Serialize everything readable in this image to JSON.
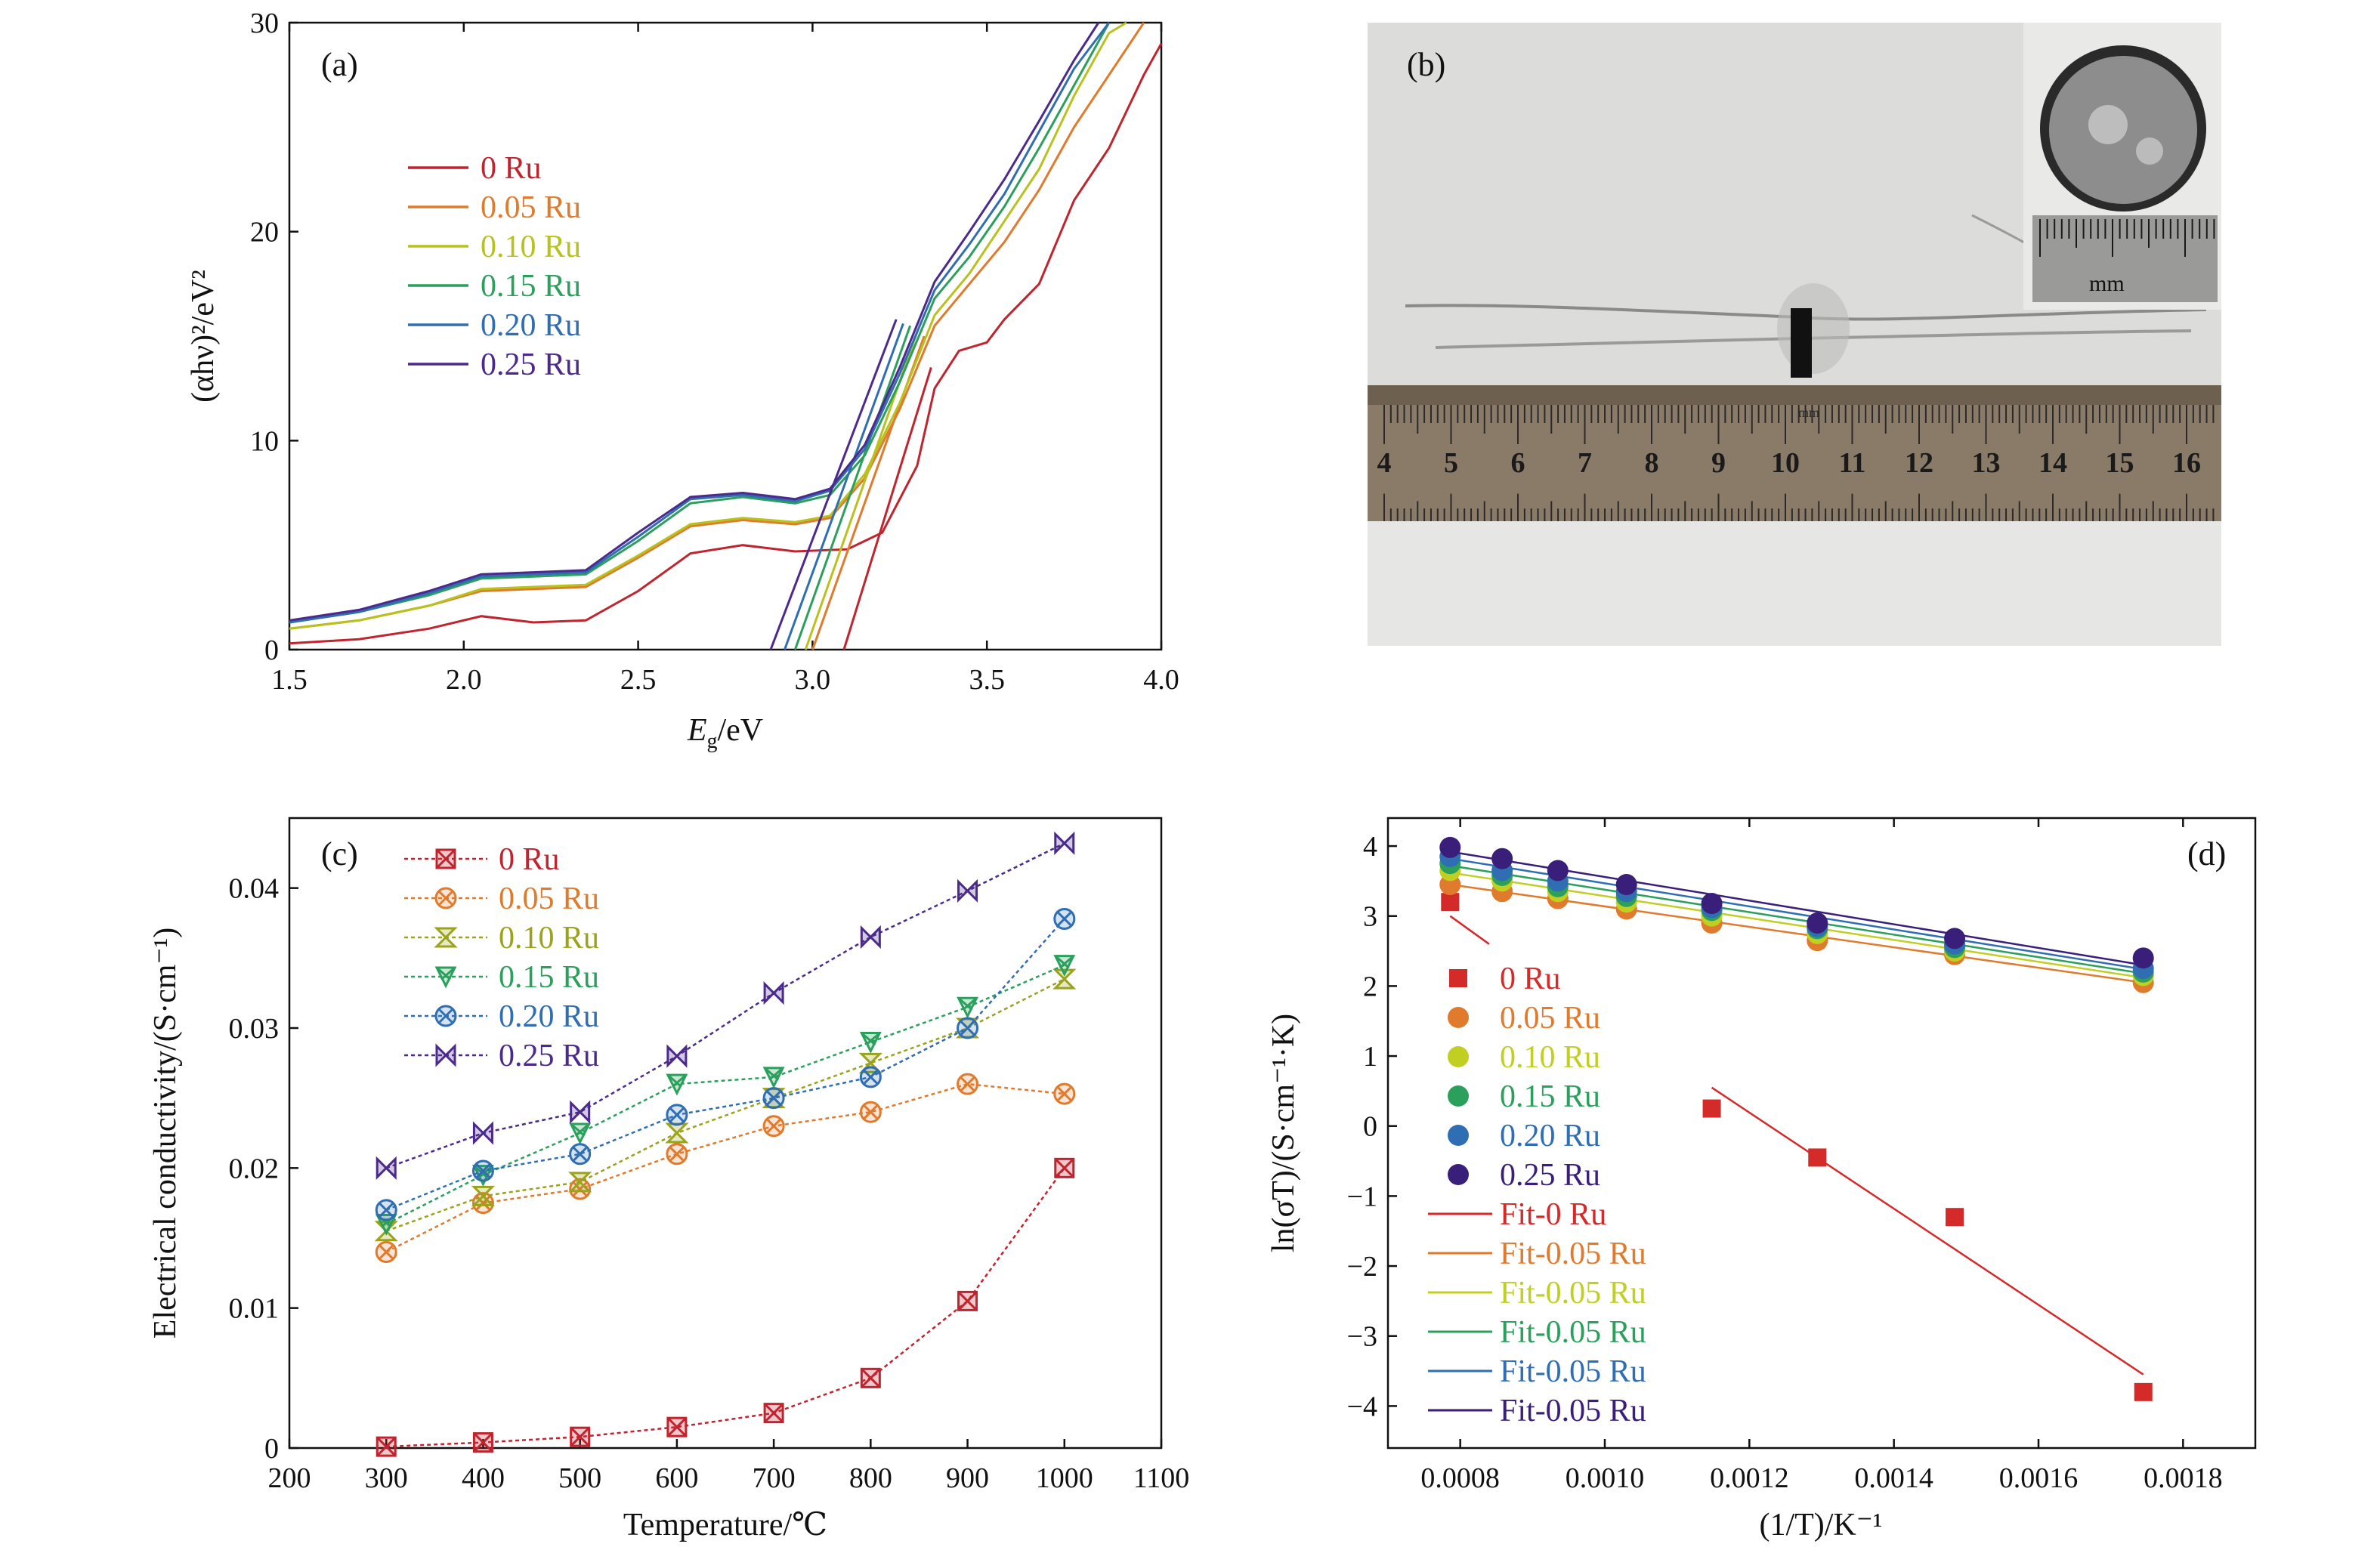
{
  "panels": {
    "a": {
      "label": "(a)"
    },
    "b": {
      "label": "(b)"
    },
    "c": {
      "label": "(c)"
    },
    "d": {
      "label": "(d)"
    }
  },
  "photo": {
    "ruler_numbers": [
      "4",
      "5",
      "6",
      "7",
      "8",
      "9",
      "10",
      "11",
      "12",
      "13",
      "14",
      "15",
      "16"
    ],
    "ruler_unit": "mm",
    "inset_unit": "mm"
  },
  "chart_data": [
    {
      "id": "a",
      "type": "line",
      "xlabel_main": "E",
      "xlabel_sub": "g",
      "xlabel_rest": "/eV",
      "ylabel": "(αhν)²/eV²",
      "xlim": [
        1.5,
        4.0
      ],
      "ylim": [
        0,
        30
      ],
      "xticks": [
        "1.5",
        "2.0",
        "2.5",
        "3.0",
        "3.5",
        "4.0"
      ],
      "yticks": [
        "0",
        "10",
        "20",
        "30"
      ],
      "legend_position": "upper-left",
      "series": [
        {
          "name": "0 Ru",
          "color": "#c0242f",
          "points": [
            [
              1.5,
              0.3
            ],
            [
              1.7,
              0.5
            ],
            [
              1.9,
              1.0
            ],
            [
              2.05,
              1.6
            ],
            [
              2.2,
              1.3
            ],
            [
              2.35,
              1.4
            ],
            [
              2.5,
              2.8
            ],
            [
              2.65,
              4.6
            ],
            [
              2.8,
              5.0
            ],
            [
              2.95,
              4.7
            ],
            [
              3.1,
              4.8
            ],
            [
              3.2,
              5.6
            ],
            [
              3.3,
              8.8
            ],
            [
              3.35,
              12.5
            ],
            [
              3.42,
              14.3
            ],
            [
              3.5,
              14.7
            ],
            [
              3.55,
              15.8
            ],
            [
              3.65,
              17.5
            ],
            [
              3.75,
              21.5
            ],
            [
              3.85,
              24.0
            ],
            [
              3.95,
              27.5
            ],
            [
              4.0,
              29.0
            ]
          ],
          "fit": [
            [
              3.09,
              0
            ],
            [
              3.34,
              13.5
            ]
          ]
        },
        {
          "name": "0.05 Ru",
          "color": "#e07a2c",
          "points": [
            [
              1.5,
              1.0
            ],
            [
              1.7,
              1.4
            ],
            [
              1.9,
              2.1
            ],
            [
              2.05,
              2.8
            ],
            [
              2.2,
              2.9
            ],
            [
              2.35,
              3.0
            ],
            [
              2.5,
              4.4
            ],
            [
              2.65,
              5.9
            ],
            [
              2.8,
              6.2
            ],
            [
              2.95,
              6.0
            ],
            [
              3.05,
              6.3
            ],
            [
              3.15,
              8.2
            ],
            [
              3.25,
              11.5
            ],
            [
              3.35,
              15.5
            ],
            [
              3.45,
              17.5
            ],
            [
              3.55,
              19.5
            ],
            [
              3.65,
              22.0
            ],
            [
              3.75,
              25.0
            ],
            [
              3.85,
              27.5
            ],
            [
              3.95,
              30.0
            ]
          ],
          "fit": [
            [
              3.0,
              0
            ],
            [
              3.32,
              15.0
            ]
          ]
        },
        {
          "name": "0.10 Ru",
          "color": "#b8c21d",
          "points": [
            [
              1.5,
              1.0
            ],
            [
              1.7,
              1.4
            ],
            [
              1.9,
              2.1
            ],
            [
              2.05,
              2.9
            ],
            [
              2.2,
              3.0
            ],
            [
              2.35,
              3.1
            ],
            [
              2.5,
              4.5
            ],
            [
              2.65,
              6.0
            ],
            [
              2.8,
              6.3
            ],
            [
              2.95,
              6.1
            ],
            [
              3.05,
              6.4
            ],
            [
              3.15,
              8.4
            ],
            [
              3.25,
              11.8
            ],
            [
              3.35,
              16.0
            ],
            [
              3.45,
              18.0
            ],
            [
              3.55,
              20.5
            ],
            [
              3.65,
              23.0
            ],
            [
              3.75,
              26.5
            ],
            [
              3.85,
              29.5
            ],
            [
              3.9,
              30.0
            ]
          ],
          "fit": [
            [
              2.98,
              0
            ],
            [
              3.3,
              15.2
            ]
          ]
        },
        {
          "name": "0.15 Ru",
          "color": "#2aa05c",
          "points": [
            [
              1.5,
              1.3
            ],
            [
              1.7,
              1.8
            ],
            [
              1.9,
              2.6
            ],
            [
              2.05,
              3.4
            ],
            [
              2.2,
              3.5
            ],
            [
              2.35,
              3.6
            ],
            [
              2.5,
              5.2
            ],
            [
              2.65,
              7.0
            ],
            [
              2.8,
              7.3
            ],
            [
              2.95,
              7.0
            ],
            [
              3.05,
              7.4
            ],
            [
              3.15,
              9.3
            ],
            [
              3.25,
              12.8
            ],
            [
              3.35,
              16.8
            ],
            [
              3.45,
              18.8
            ],
            [
              3.55,
              21.2
            ],
            [
              3.65,
              24.0
            ],
            [
              3.75,
              27.0
            ],
            [
              3.85,
              30.0
            ]
          ],
          "fit": [
            [
              2.95,
              0
            ],
            [
              3.28,
              15.5
            ]
          ]
        },
        {
          "name": "0.20 Ru",
          "color": "#2f6eb3",
          "points": [
            [
              1.5,
              1.3
            ],
            [
              1.7,
              1.8
            ],
            [
              1.9,
              2.7
            ],
            [
              2.05,
              3.5
            ],
            [
              2.2,
              3.6
            ],
            [
              2.35,
              3.7
            ],
            [
              2.5,
              5.4
            ],
            [
              2.65,
              7.2
            ],
            [
              2.8,
              7.4
            ],
            [
              2.95,
              7.1
            ],
            [
              3.05,
              7.6
            ],
            [
              3.15,
              9.6
            ],
            [
              3.25,
              13.2
            ],
            [
              3.35,
              17.2
            ],
            [
              3.45,
              19.4
            ],
            [
              3.55,
              21.8
            ],
            [
              3.65,
              24.8
            ],
            [
              3.75,
              27.8
            ],
            [
              3.85,
              30.0
            ]
          ],
          "fit": [
            [
              2.92,
              0
            ],
            [
              3.26,
              15.6
            ]
          ]
        },
        {
          "name": "0.25 Ru",
          "color": "#4b2a8c",
          "points": [
            [
              1.5,
              1.4
            ],
            [
              1.7,
              1.9
            ],
            [
              1.9,
              2.8
            ],
            [
              2.05,
              3.6
            ],
            [
              2.2,
              3.7
            ],
            [
              2.35,
              3.8
            ],
            [
              2.5,
              5.6
            ],
            [
              2.65,
              7.3
            ],
            [
              2.8,
              7.5
            ],
            [
              2.95,
              7.2
            ],
            [
              3.05,
              7.7
            ],
            [
              3.15,
              9.8
            ],
            [
              3.25,
              13.5
            ],
            [
              3.35,
              17.6
            ],
            [
              3.45,
              20.0
            ],
            [
              3.55,
              22.5
            ],
            [
              3.65,
              25.3
            ],
            [
              3.75,
              28.2
            ],
            [
              3.82,
              30.0
            ]
          ],
          "fit": [
            [
              2.88,
              0
            ],
            [
              3.24,
              15.8
            ]
          ]
        }
      ]
    },
    {
      "id": "c",
      "type": "line",
      "xlabel": "Temperature/℃",
      "ylabel": "Electrical conductivity/(S·cm⁻¹)",
      "xlim": [
        200,
        1100
      ],
      "ylim": [
        0,
        0.045
      ],
      "xticks": [
        "200",
        "300",
        "400",
        "500",
        "600",
        "700",
        "800",
        "900",
        "1000",
        "1100"
      ],
      "yticks": [
        "0",
        "0.01",
        "0.02",
        "0.03",
        "0.04"
      ],
      "legend_position": "upper-left",
      "x": [
        300,
        400,
        500,
        600,
        700,
        800,
        900,
        1000
      ],
      "series": [
        {
          "name": "0 Ru",
          "color": "#c0242f",
          "marker": "square-x",
          "values": [
            0.0001,
            0.0004,
            0.0008,
            0.0015,
            0.0025,
            0.005,
            0.0105,
            0.02
          ]
        },
        {
          "name": "0.05 Ru",
          "color": "#e07a2c",
          "marker": "circle-x",
          "values": [
            0.014,
            0.0175,
            0.0185,
            0.021,
            0.023,
            0.024,
            0.026,
            0.0253
          ]
        },
        {
          "name": "0.10 Ru",
          "color": "#9aa31a",
          "marker": "hourglass",
          "values": [
            0.0155,
            0.018,
            0.019,
            0.0225,
            0.025,
            0.0275,
            0.03,
            0.0335
          ]
        },
        {
          "name": "0.15 Ru",
          "color": "#2aa05c",
          "marker": "tri-down-x",
          "values": [
            0.016,
            0.0195,
            0.0225,
            0.026,
            0.0265,
            0.029,
            0.0315,
            0.0345
          ]
        },
        {
          "name": "0.20 Ru",
          "color": "#2f6eb3",
          "marker": "circle-x",
          "values": [
            0.017,
            0.0198,
            0.021,
            0.0238,
            0.025,
            0.0265,
            0.03,
            0.0378
          ]
        },
        {
          "name": "0.25 Ru",
          "color": "#4b2a8c",
          "marker": "bowtie",
          "values": [
            0.02,
            0.0225,
            0.024,
            0.028,
            0.0325,
            0.0365,
            0.0398,
            0.0432
          ]
        }
      ]
    },
    {
      "id": "d",
      "type": "scatter",
      "xlabel": "(1/T)/K⁻¹",
      "ylabel": "ln(σT)/(S·cm⁻¹·K)",
      "xlim": [
        0.0007,
        0.0019
      ],
      "ylim": [
        -4.6,
        4.4
      ],
      "xticks": [
        "0.0008",
        "0.0010",
        "0.0012",
        "0.0014",
        "0.0016",
        "0.0018"
      ],
      "yticks": [
        "-4",
        "-3",
        "-2",
        "-1",
        "0",
        "1",
        "2",
        "3",
        "4"
      ],
      "legend_position": "left",
      "x": [
        0.000786,
        0.000858,
        0.000935,
        0.00103,
        0.001148,
        0.001294,
        0.001484,
        0.001745
      ],
      "series": [
        {
          "name": "0 Ru",
          "color": "#d42a2a",
          "marker": "square",
          "values": [
            3.2,
            null,
            null,
            null,
            0.25,
            -0.45,
            -1.3,
            -3.8
          ],
          "fit_name": "Fit-0 Ru",
          "fit": [
            [
              0.000786,
              3.0
            ],
            [
              0.00084,
              2.6
            ],
            null,
            [
              0.001148,
              0.55
            ],
            [
              0.001745,
              -3.55
            ]
          ]
        },
        {
          "name": "0.05 Ru",
          "color": "#e07a2c",
          "marker": "circle",
          "values": [
            3.45,
            3.35,
            3.25,
            3.1,
            2.9,
            2.65,
            2.45,
            2.05
          ],
          "fit_name": "Fit-0.05 Ru",
          "fit": [
            [
              0.000786,
              3.45
            ],
            [
              0.001745,
              2.05
            ]
          ]
        },
        {
          "name": "0.10 Ru",
          "color": "#c0cf22",
          "marker": "circle",
          "values": [
            3.65,
            3.5,
            3.35,
            3.2,
            3.0,
            2.75,
            2.5,
            2.15
          ],
          "fit_name": "Fit-0.05 Ru",
          "fit": [
            [
              0.000786,
              3.62
            ],
            [
              0.001745,
              2.12
            ]
          ]
        },
        {
          "name": "0.15 Ru",
          "color": "#2aa05c",
          "marker": "circle",
          "values": [
            3.75,
            3.58,
            3.42,
            3.28,
            3.08,
            2.82,
            2.55,
            2.2
          ],
          "fit_name": "Fit-0.05 Ru",
          "fit": [
            [
              0.000786,
              3.72
            ],
            [
              0.001745,
              2.18
            ]
          ]
        },
        {
          "name": "0.20 Ru",
          "color": "#2f6eb3",
          "marker": "circle",
          "values": [
            3.85,
            3.65,
            3.5,
            3.35,
            3.12,
            2.85,
            2.6,
            2.25
          ],
          "fit_name": "Fit-0.05 Ru",
          "fit": [
            [
              0.000786,
              3.82
            ],
            [
              0.001745,
              2.24
            ]
          ]
        },
        {
          "name": "0.25 Ru",
          "color": "#3a1f7a",
          "marker": "circle",
          "values": [
            3.98,
            3.82,
            3.65,
            3.45,
            3.18,
            2.9,
            2.68,
            2.4
          ],
          "fit_name": "Fit-0.05 Ru",
          "fit": [
            [
              0.000786,
              3.92
            ],
            [
              0.001745,
              2.3
            ]
          ]
        }
      ]
    }
  ]
}
